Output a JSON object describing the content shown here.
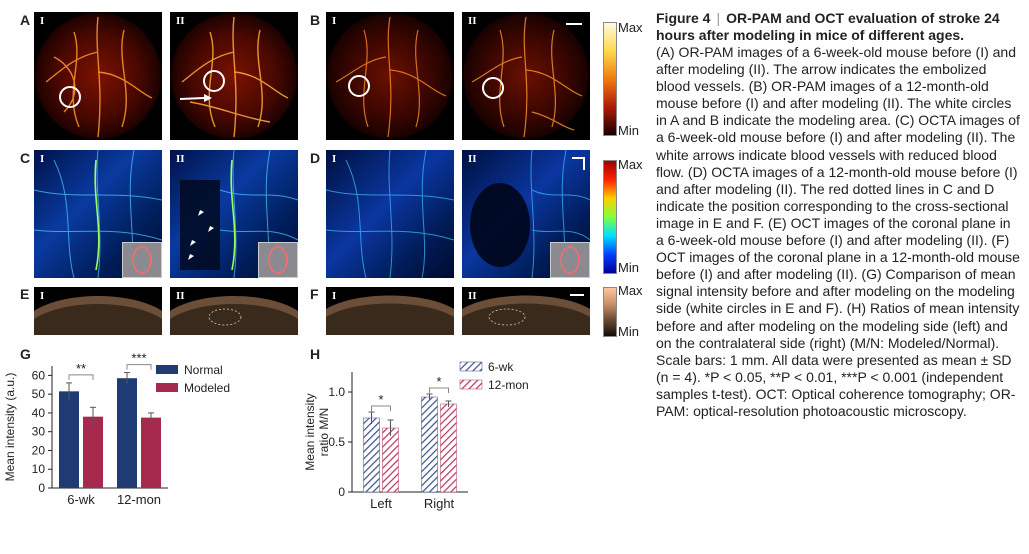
{
  "figure": {
    "label": "Figure 4",
    "title": "OR-PAM and OCT evaluation of stroke 24 hours after modeling in mice of different ages.",
    "caption": "(A) OR-PAM images of a 6-week-old mouse before (I) and after modeling (II). The arrow indicates the embolized blood vessels. (B) OR-PAM images of a 12-month-old mouse before (I) and after modeling (II). The white circles in A and B indicate the modeling area. (C) OCTA images of a 6-week-old mouse before (I) and after modeling (II). The white arrows indicate blood vessels with reduced blood flow. (D) OCTA images of a 12-month-old mouse before (I) and after modeling (II). The red dotted lines in C and D indicate the position corresponding to the cross-sectional image in E and F. (E) OCT images of the coronal plane in a 6-week-old mouse before (I) and after modeling (II). (F) OCT images of the coronal plane in a 12-month-old mouse before (I) and after modeling (II). (G) Comparison of mean signal intensity before and after modeling on the modeling side (white circles in E and F). (H) Ratios of mean intensity before and after modeling on the modeling side (left) and on the contralateral side (right) (M/N: Modeled/Normal). Scale bars: 1 mm. All data were presented as mean ± SD (n = 4). *P < 0.05, **P < 0.01, ***P < 0.001 (independent samples t-test). OCT: Optical coherence tomography; OR-PAM: optical-resolution photoacoustic microscopy."
  },
  "panels": {
    "A": {
      "letter": "A",
      "sub": [
        "I",
        "II"
      ]
    },
    "B": {
      "letter": "B",
      "sub": [
        "I",
        "II"
      ]
    },
    "C": {
      "letter": "C",
      "sub": [
        "I",
        "II"
      ]
    },
    "D": {
      "letter": "D",
      "sub": [
        "I",
        "II"
      ]
    },
    "E": {
      "letter": "E",
      "sub": [
        "I",
        "II"
      ]
    },
    "F": {
      "letter": "F",
      "sub": [
        "I",
        "II"
      ]
    },
    "G": {
      "letter": "G"
    },
    "H": {
      "letter": "H"
    }
  },
  "colorbars": [
    {
      "max": "Max",
      "min": "Min",
      "colors": [
        "#fffbe0",
        "#ffd84a",
        "#f07a10",
        "#b01a08",
        "#1a0000"
      ]
    },
    {
      "max": "Max",
      "min": "Min",
      "colors": [
        "#a00000",
        "#ff2000",
        "#ffd000",
        "#80ff40",
        "#00e0ff",
        "#0040ff",
        "#00009a"
      ]
    },
    {
      "max": "Max",
      "min": "Min",
      "colors": [
        "#ffc6a0",
        "#c8906a",
        "#6a4a34",
        "#140c06"
      ]
    }
  ],
  "chart_data": [
    {
      "panel": "G",
      "type": "bar",
      "categories": [
        "6-wk",
        "12-mon"
      ],
      "ylabel": "Mean intensity (a.u.)",
      "xlabel": "",
      "ylim": [
        0,
        65
      ],
      "yticks": [
        0,
        10,
        20,
        30,
        40,
        50,
        60
      ],
      "legend_position": "top-right",
      "series": [
        {
          "name": "Normal",
          "color": "#1f3b73",
          "values": [
            51.5,
            58.5
          ],
          "errors": [
            4.5,
            3.0
          ]
        },
        {
          "name": "Modeled",
          "color": "#a52a4d",
          "values": [
            38.0,
            37.5
          ],
          "errors": [
            5.0,
            2.5
          ]
        }
      ],
      "significance": [
        "**",
        "***"
      ]
    },
    {
      "panel": "H",
      "type": "bar",
      "categories": [
        "Left",
        "Right"
      ],
      "ylabel": "Mean intensity ratio M/N",
      "xlabel": "",
      "ylim": [
        0,
        1.2
      ],
      "yticks": [
        0,
        0.5,
        1.0
      ],
      "ytick_labels": [
        "0",
        "0.5",
        "1.0"
      ],
      "legend_position": "top-right",
      "series": [
        {
          "name": "6-wk",
          "color": "#3a4f86",
          "values": [
            0.74,
            0.95
          ],
          "errors": [
            0.06,
            0.03
          ]
        },
        {
          "name": "12-mon",
          "color": "#b5355a",
          "values": [
            0.64,
            0.88
          ],
          "errors": [
            0.08,
            0.03
          ]
        }
      ],
      "significance": [
        "*",
        "*"
      ]
    }
  ]
}
